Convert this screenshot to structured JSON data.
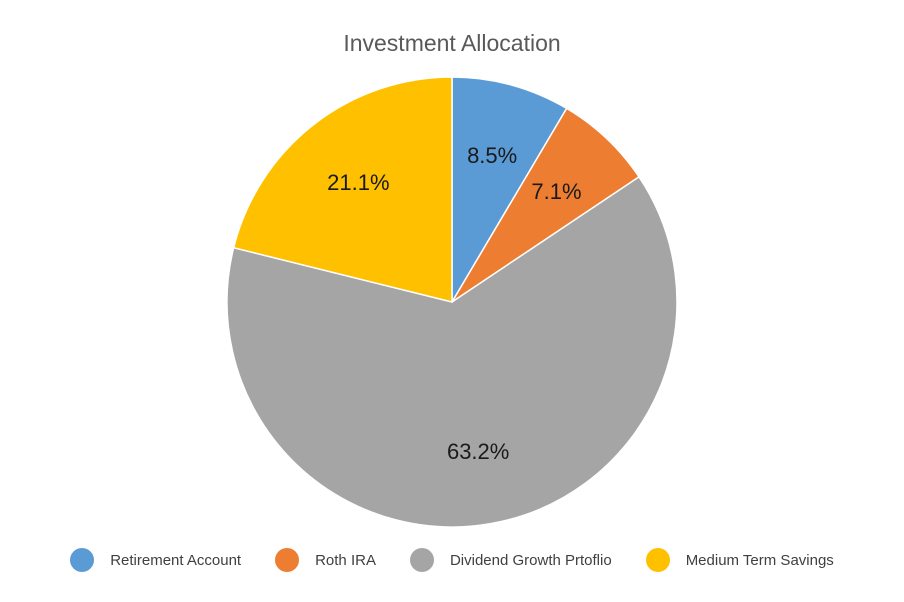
{
  "chart_data": {
    "type": "pie",
    "title": "Investment Allocation",
    "start_angle_deg": 0,
    "direction": "clockwise",
    "legend_position": "bottom",
    "series": [
      {
        "name": "Retirement Account",
        "value": 8.5,
        "label": "8.5%",
        "color": "#5b9bd5"
      },
      {
        "name": "Roth IRA",
        "value": 7.1,
        "label": "7.1%",
        "color": "#ed7d31"
      },
      {
        "name": "Dividend Growth Prtoflio",
        "value": 63.2,
        "label": "63.2%",
        "color": "#a5a5a5"
      },
      {
        "name": "Medium Term Savings",
        "value": 21.1,
        "label": "21.1%",
        "color": "#ffc000"
      }
    ]
  }
}
